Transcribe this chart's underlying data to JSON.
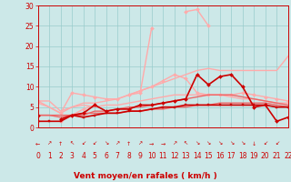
{
  "background_color": "#cce8e8",
  "grid_color": "#99cccc",
  "xlabel": "Vent moyen/en rafales ( km/h )",
  "xlim": [
    0,
    22
  ],
  "ylim": [
    0,
    30
  ],
  "yticks": [
    0,
    5,
    10,
    15,
    20,
    25,
    30
  ],
  "xticks": [
    0,
    1,
    2,
    3,
    4,
    5,
    6,
    7,
    8,
    9,
    10,
    11,
    12,
    13,
    14,
    15,
    16,
    17,
    18,
    19,
    20,
    21,
    22
  ],
  "series": [
    {
      "x": [
        0,
        1,
        2,
        3,
        4,
        5,
        6,
        7,
        8,
        9,
        10,
        11,
        12,
        13,
        14,
        15,
        16,
        17,
        18,
        19,
        20,
        21,
        22
      ],
      "y": [
        6.5,
        6.5,
        4,
        5,
        6,
        6,
        6.5,
        7,
        8,
        9,
        10,
        11,
        12,
        13,
        14,
        14.5,
        14,
        14,
        14,
        14,
        14,
        14,
        17.5
      ],
      "color": "#ffaaaa",
      "lw": 1.0,
      "marker": null,
      "ms": 0
    },
    {
      "x": [
        0,
        2,
        3,
        4,
        5,
        6,
        7,
        8,
        9,
        10,
        11,
        12,
        13,
        14,
        15,
        16,
        17,
        18,
        19,
        20,
        21,
        22
      ],
      "y": [
        6.5,
        3.5,
        8.5,
        8,
        7.5,
        7,
        7,
        8,
        9,
        10,
        11.5,
        13,
        12,
        8.5,
        8,
        8,
        8,
        8.5,
        8,
        7.5,
        7,
        6.5
      ],
      "color": "#ffaaaa",
      "lw": 1.0,
      "marker": "D",
      "ms": 2
    },
    {
      "x": [
        0,
        1,
        2,
        3,
        4,
        5,
        6,
        7,
        8,
        9,
        10,
        11,
        12,
        13,
        14,
        15,
        16,
        17,
        18,
        19,
        20,
        21,
        22
      ],
      "y": [
        1.5,
        null,
        1.5,
        3,
        4.5,
        5.5,
        null,
        null,
        8,
        8.5,
        24.5,
        null,
        null,
        28.5,
        29,
        25,
        null,
        null,
        null,
        null,
        null,
        null,
        null
      ],
      "color": "#ffaaaa",
      "lw": 1.0,
      "marker": "D",
      "ms": 2
    },
    {
      "x": [
        0,
        1,
        2,
        3,
        4,
        5,
        6,
        7,
        8,
        9,
        10,
        11,
        12,
        13,
        14,
        15,
        16,
        17,
        18,
        19,
        20,
        21,
        22
      ],
      "y": [
        6,
        5,
        3.5,
        5,
        5.5,
        5,
        5.5,
        5.5,
        6,
        6.5,
        7,
        7.5,
        8,
        8,
        8,
        8,
        8,
        7.5,
        7,
        7,
        6.5,
        6,
        6
      ],
      "color": "#ffaaaa",
      "lw": 1.0,
      "marker": null,
      "ms": 0
    },
    {
      "x": [
        0,
        1,
        2,
        3,
        4,
        5,
        6,
        7,
        8,
        9,
        10,
        11,
        12,
        13,
        14,
        15,
        16,
        17,
        18,
        19,
        20,
        21,
        22
      ],
      "y": [
        3,
        3,
        3,
        3,
        3,
        4,
        4,
        4.5,
        5,
        5,
        5.5,
        6,
        6.5,
        7,
        7.5,
        8,
        8,
        8,
        7.5,
        7,
        6.5,
        6,
        5.5
      ],
      "color": "#ee6666",
      "lw": 1.0,
      "marker": null,
      "ms": 0
    },
    {
      "x": [
        0,
        1,
        2,
        3,
        4,
        5,
        6,
        7,
        8,
        9,
        10,
        11,
        12,
        13,
        14,
        15,
        16,
        17,
        18,
        19,
        20,
        21,
        22
      ],
      "y": [
        3,
        3,
        2.5,
        3,
        3.5,
        3.5,
        3.5,
        3.5,
        4,
        4,
        4.5,
        4.5,
        5,
        5,
        5.5,
        5.5,
        6,
        6,
        6,
        6,
        6,
        5.5,
        5
      ],
      "color": "#ee6666",
      "lw": 1.0,
      "marker": null,
      "ms": 0
    },
    {
      "x": [
        0,
        1,
        2,
        3,
        4,
        5,
        6,
        7,
        8,
        9,
        10,
        11,
        12,
        13,
        14,
        15,
        16,
        17,
        18,
        19,
        20,
        21,
        22
      ],
      "y": [
        1.5,
        1.5,
        1.5,
        3,
        2.5,
        3,
        3.5,
        3.5,
        4,
        4,
        4.5,
        5,
        5,
        5.5,
        5.5,
        5.5,
        5.5,
        5.5,
        5.5,
        5.5,
        5.5,
        5,
        5
      ],
      "color": "#cc0000",
      "lw": 1.2,
      "marker": "s",
      "ms": 2
    },
    {
      "x": [
        0,
        1,
        2,
        3,
        4,
        5,
        6,
        7,
        8,
        9,
        10,
        11,
        12,
        13,
        14,
        15,
        16,
        17,
        18,
        19,
        20,
        21,
        22
      ],
      "y": [
        3,
        null,
        2,
        3,
        3.5,
        5.5,
        4,
        4.5,
        4.5,
        5.5,
        5.5,
        6,
        6.5,
        7,
        13,
        10.5,
        12.5,
        13,
        10,
        5,
        5.5,
        1.5,
        2.5
      ],
      "color": "#cc0000",
      "lw": 1.2,
      "marker": "D",
      "ms": 2
    }
  ],
  "arrows": [
    "←",
    "↗",
    "↑",
    "↖",
    "↙",
    "↙",
    "↘",
    "↗",
    "↑",
    "↗",
    "→",
    "→",
    "↗",
    "↖",
    "↘",
    "↘",
    "↘",
    "↘",
    "↘",
    "↓",
    "↙",
    "↙"
  ],
  "tick_fontsize": 5.5,
  "axis_fontsize": 6.5,
  "arrow_fontsize": 4.5
}
